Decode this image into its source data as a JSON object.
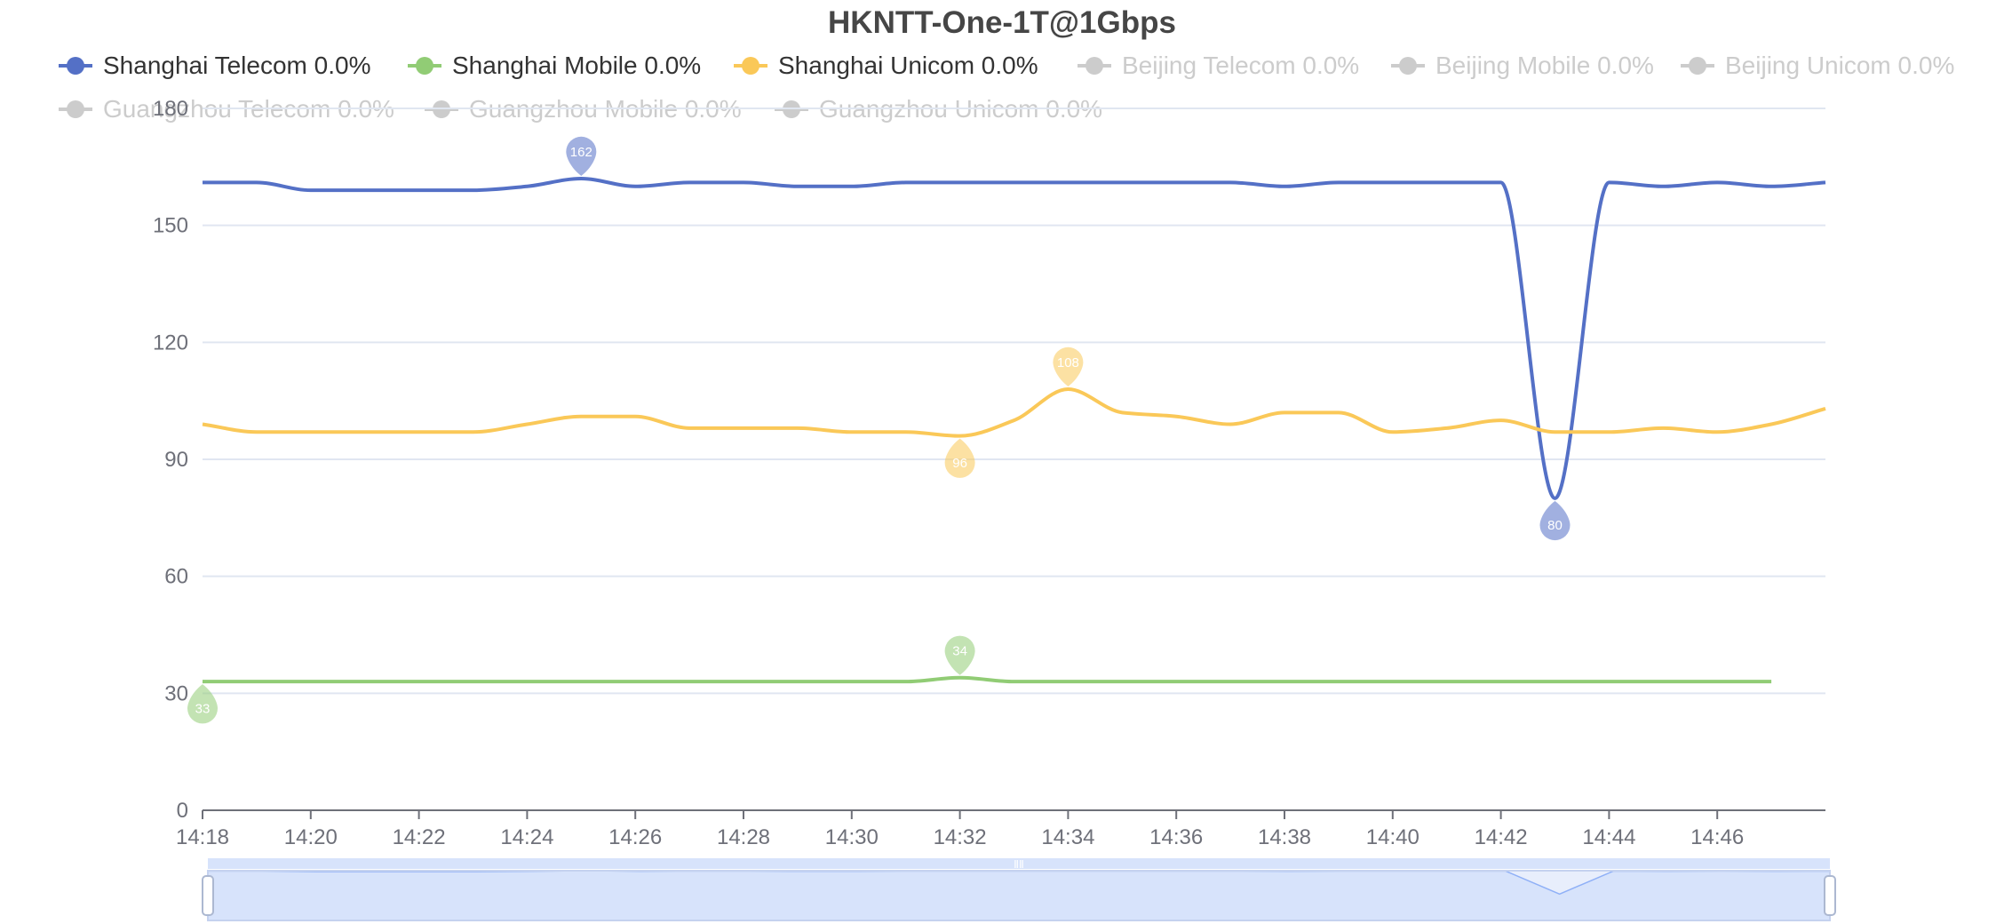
{
  "chart_data": {
    "type": "line",
    "title": "HKNTT-One-1T@1Gbps",
    "xlabel": "",
    "ylabel": "",
    "ylim": [
      0,
      180
    ],
    "yticks": [
      0,
      30,
      60,
      90,
      120,
      150,
      180
    ],
    "xlim": [
      "14:18",
      "14:48"
    ],
    "xticks": [
      "14:18",
      "14:20",
      "14:22",
      "14:24",
      "14:26",
      "14:28",
      "14:30",
      "14:32",
      "14:34",
      "14:36",
      "14:38",
      "14:40",
      "14:42",
      "14:44",
      "14:46"
    ],
    "grid": "horizontal",
    "legend_position": "top",
    "smooth": true,
    "series": [
      {
        "name": "Shanghai Telecom",
        "legend_label": "Shanghai Telecom 0.0%",
        "color": "#5470c6",
        "visible": true,
        "x": [
          "14:18",
          "14:19",
          "14:20",
          "14:21",
          "14:22",
          "14:23",
          "14:24",
          "14:25",
          "14:26",
          "14:27",
          "14:28",
          "14:29",
          "14:30",
          "14:31",
          "14:32",
          "14:33",
          "14:34",
          "14:35",
          "14:36",
          "14:37",
          "14:38",
          "14:39",
          "14:40",
          "14:41",
          "14:42",
          "14:43",
          "14:44",
          "14:45",
          "14:46",
          "14:47",
          "14:48"
        ],
        "y": [
          161,
          161,
          159,
          159,
          159,
          159,
          160,
          162,
          160,
          161,
          161,
          160,
          160,
          161,
          161,
          161,
          161,
          161,
          161,
          161,
          160,
          161,
          161,
          161,
          161,
          80,
          161,
          160,
          161,
          160,
          161
        ],
        "markers": [
          {
            "type": "max",
            "x": "14:25",
            "y": 162,
            "label": "162"
          },
          {
            "type": "min",
            "x": "14:43",
            "y": 80,
            "label": "80"
          }
        ]
      },
      {
        "name": "Shanghai Mobile",
        "legend_label": "Shanghai Mobile 0.0%",
        "color": "#91cc75",
        "visible": true,
        "x": [
          "14:18",
          "14:19",
          "14:20",
          "14:21",
          "14:22",
          "14:23",
          "14:24",
          "14:25",
          "14:26",
          "14:27",
          "14:28",
          "14:29",
          "14:30",
          "14:31",
          "14:32",
          "14:33",
          "14:34",
          "14:35",
          "14:36",
          "14:37",
          "14:38",
          "14:39",
          "14:40",
          "14:41",
          "14:42",
          "14:43",
          "14:44",
          "14:45",
          "14:46",
          "14:47"
        ],
        "y": [
          33,
          33,
          33,
          33,
          33,
          33,
          33,
          33,
          33,
          33,
          33,
          33,
          33,
          33,
          34,
          33,
          33,
          33,
          33,
          33,
          33,
          33,
          33,
          33,
          33,
          33,
          33,
          33,
          33,
          33
        ],
        "markers": [
          {
            "type": "max",
            "x": "14:32",
            "y": 34,
            "label": "34"
          },
          {
            "type": "min",
            "x": "14:18",
            "y": 33,
            "label": "33"
          }
        ]
      },
      {
        "name": "Shanghai Unicom",
        "legend_label": "Shanghai Unicom 0.0%",
        "color": "#fac858",
        "visible": true,
        "x": [
          "14:18",
          "14:19",
          "14:20",
          "14:21",
          "14:22",
          "14:23",
          "14:24",
          "14:25",
          "14:26",
          "14:27",
          "14:28",
          "14:29",
          "14:30",
          "14:31",
          "14:32",
          "14:33",
          "14:34",
          "14:35",
          "14:36",
          "14:37",
          "14:38",
          "14:39",
          "14:40",
          "14:41",
          "14:42",
          "14:43",
          "14:44",
          "14:45",
          "14:46",
          "14:47",
          "14:48"
        ],
        "y": [
          99,
          97,
          97,
          97,
          97,
          97,
          99,
          101,
          101,
          98,
          98,
          98,
          97,
          97,
          96,
          100,
          108,
          102,
          101,
          99,
          102,
          102,
          97,
          98,
          100,
          97,
          97,
          98,
          97,
          99,
          103
        ],
        "markers": [
          {
            "type": "max",
            "x": "14:34",
            "y": 108,
            "label": "108"
          },
          {
            "type": "min",
            "x": "14:32",
            "y": 96,
            "label": "96"
          }
        ]
      },
      {
        "name": "Beijing Telecom",
        "legend_label": "Beijing Telecom 0.0%",
        "color": "#cccccc",
        "visible": false
      },
      {
        "name": "Beijing Mobile",
        "legend_label": "Beijing Mobile 0.0%",
        "color": "#cccccc",
        "visible": false
      },
      {
        "name": "Beijing Unicom",
        "legend_label": "Beijing Unicom 0.0%",
        "color": "#cccccc",
        "visible": false
      },
      {
        "name": "Guangzhou Telecom",
        "legend_label": "Guangzhou Telecom 0.0%",
        "color": "#cccccc",
        "visible": false
      },
      {
        "name": "Guangzhou Mobile",
        "legend_label": "Guangzhou Mobile 0.0%",
        "color": "#cccccc",
        "visible": false
      },
      {
        "name": "Guangzhou Unicom",
        "legend_label": "Guangzhou Unicom 0.0%",
        "color": "#cccccc",
        "visible": false
      }
    ],
    "zoom_slider": {
      "start": "14:18",
      "end": "14:48",
      "handle_icon": "grip-icon"
    }
  },
  "colors": {
    "axis": "#6e7079",
    "grid": "#e0e6f1",
    "slider_fill": "#d7e3fb",
    "slider_border": "#c5d2ef",
    "slider_line": "#8fb0f7",
    "legend_inactive": "#cccccc"
  }
}
